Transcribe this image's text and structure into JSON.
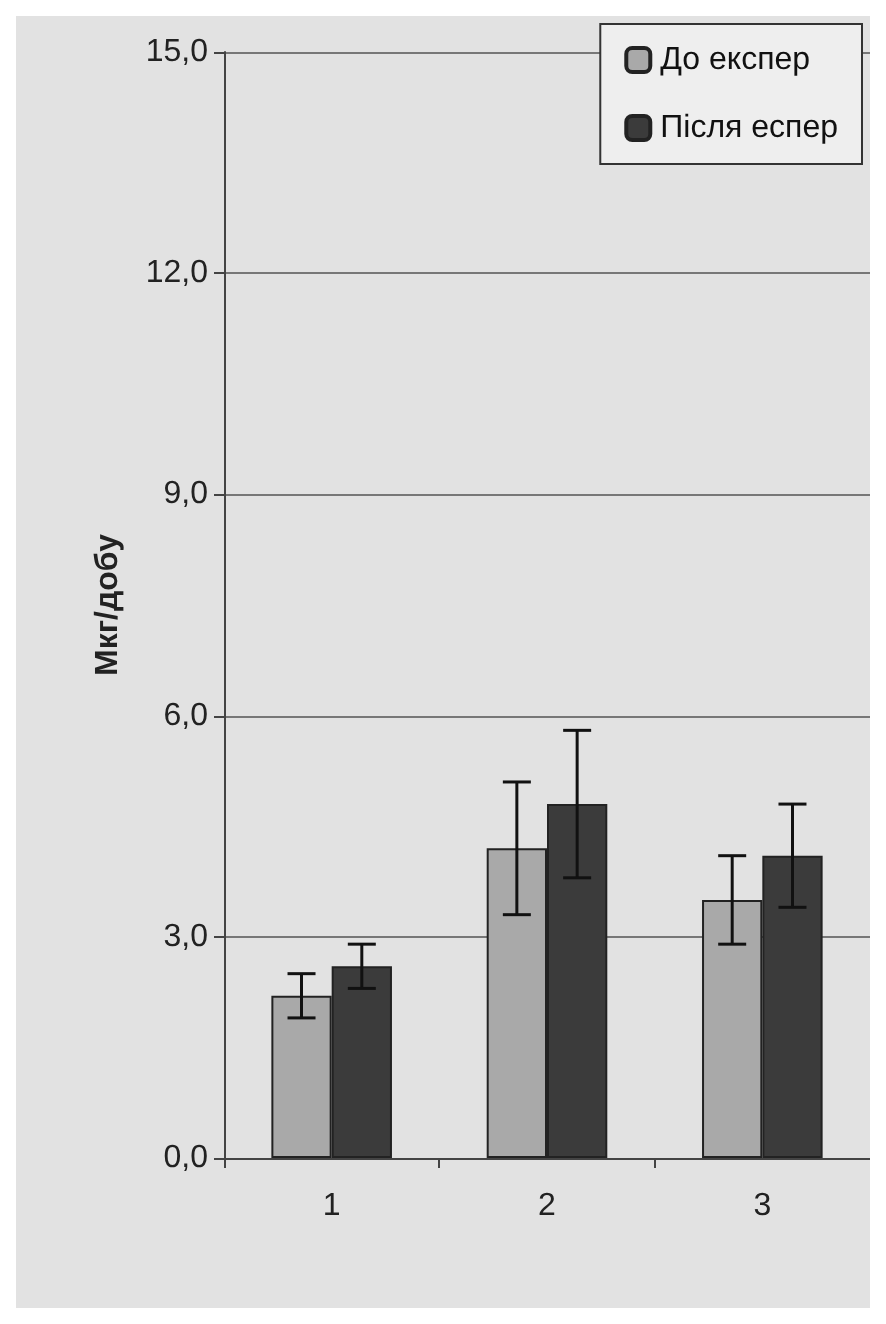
{
  "chart_data": {
    "type": "bar",
    "ylabel": "Мкг/добу",
    "categories": [
      "1",
      "2",
      "3"
    ],
    "series": [
      {
        "name": "До експер",
        "color": "#a9a9a9",
        "values": [
          2.2,
          4.2,
          3.5
        ],
        "errors": [
          0.3,
          0.9,
          0.6
        ]
      },
      {
        "name": "Після еспер",
        "color": "#3b3b3b",
        "values": [
          2.6,
          4.8,
          4.1
        ],
        "errors": [
          0.3,
          1.0,
          0.7
        ]
      }
    ],
    "ylim": [
      0,
      15
    ],
    "yticks": [
      {
        "value": 0,
        "label": "0,0"
      },
      {
        "value": 3,
        "label": "3,0"
      },
      {
        "value": 6,
        "label": "6,0"
      },
      {
        "value": 9,
        "label": "9,0"
      },
      {
        "value": 12,
        "label": "12,0"
      },
      {
        "value": 15,
        "label": "15,0"
      }
    ],
    "grid": "y",
    "legend": "top right"
  }
}
